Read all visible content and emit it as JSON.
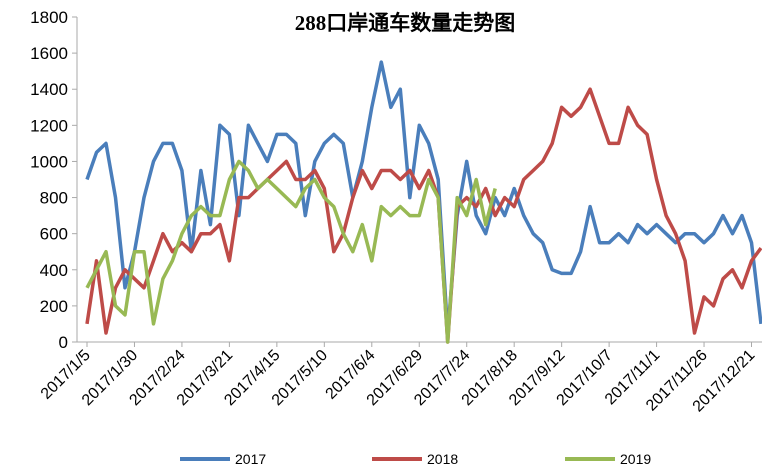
{
  "chart_data": {
    "type": "line",
    "title": "288口岸通车数量走势图",
    "categories": [
      "2017/1/5",
      null,
      null,
      null,
      null,
      "2017/1/30",
      null,
      null,
      null,
      null,
      "2017/2/24",
      null,
      null,
      null,
      null,
      "2017/3/21",
      null,
      null,
      null,
      null,
      "2017/4/15",
      null,
      null,
      null,
      null,
      "2017/5/10",
      null,
      null,
      null,
      null,
      "2017/6/4",
      null,
      null,
      null,
      null,
      "2017/6/29",
      null,
      null,
      null,
      null,
      "2017/7/24",
      null,
      null,
      null,
      null,
      "2017/8/18",
      null,
      null,
      null,
      null,
      "2017/9/12",
      null,
      null,
      null,
      null,
      "2017/10/7",
      null,
      null,
      null,
      null,
      "2017/11/1",
      null,
      null,
      null,
      null,
      "2017/11/26",
      null,
      null,
      null,
      null,
      "2017/12/21",
      null
    ],
    "series": [
      {
        "name": "2017",
        "color": "#4a7ebb",
        "values": [
          900,
          1050,
          1100,
          800,
          300,
          500,
          800,
          1000,
          1100,
          1100,
          950,
          500,
          950,
          650,
          1200,
          1150,
          700,
          1200,
          1100,
          1000,
          1150,
          1150,
          1100,
          700,
          1000,
          1100,
          1150,
          1100,
          800,
          1000,
          1300,
          1550,
          1300,
          1400,
          800,
          1200,
          1100,
          900,
          50,
          700,
          1000,
          700,
          600,
          800,
          700,
          850,
          700,
          600,
          550,
          400,
          380,
          380,
          500,
          750,
          550,
          550,
          600,
          550,
          650,
          600,
          650,
          600,
          550,
          600,
          600,
          550,
          600,
          700,
          600,
          700,
          550,
          100
        ]
      },
      {
        "name": "2018",
        "color": "#be4b48",
        "values": [
          100,
          450,
          50,
          300,
          400,
          350,
          300,
          450,
          600,
          500,
          550,
          500,
          600,
          600,
          650,
          450,
          800,
          800,
          850,
          900,
          950,
          1000,
          900,
          900,
          950,
          850,
          500,
          600,
          800,
          950,
          850,
          950,
          950,
          900,
          950,
          850,
          950,
          800,
          0,
          750,
          800,
          750,
          850,
          700,
          800,
          750,
          900,
          950,
          1000,
          1100,
          1300,
          1250,
          1300,
          1400,
          1250,
          1100,
          1100,
          1300,
          1200,
          1150,
          900,
          700,
          600,
          450,
          50,
          250,
          200,
          350,
          400,
          300,
          450,
          520
        ]
      },
      {
        "name": "2019",
        "color": "#98b954",
        "values": [
          300,
          400,
          500,
          200,
          150,
          500,
          500,
          100,
          350,
          450,
          600,
          700,
          750,
          700,
          700,
          900,
          1000,
          950,
          850,
          900,
          850,
          800,
          750,
          850,
          900,
          800,
          750,
          600,
          500,
          650,
          450,
          750,
          700,
          750,
          700,
          700,
          900,
          800,
          0,
          800,
          700,
          900,
          650,
          850,
          null,
          null,
          null,
          null,
          null,
          null,
          null,
          null,
          null,
          null,
          null,
          null,
          null,
          null,
          null,
          null,
          null,
          null,
          null,
          null,
          null,
          null,
          null,
          null,
          null,
          null,
          null,
          null
        ]
      }
    ],
    "ylim": [
      0,
      1800
    ],
    "yticks": [
      0,
      200,
      400,
      600,
      800,
      1000,
      1200,
      1400,
      1600,
      1800
    ]
  }
}
